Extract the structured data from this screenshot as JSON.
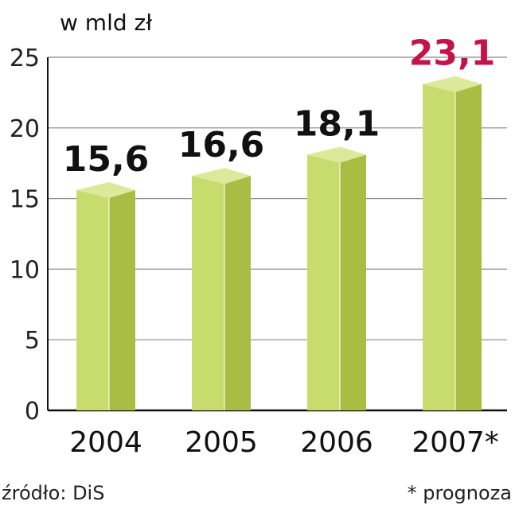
{
  "chart_data": {
    "type": "bar",
    "unit_label": "w mld zł",
    "categories": [
      "2004",
      "2005",
      "2006",
      "2007*"
    ],
    "values": [
      15.6,
      16.6,
      18.1,
      23.1
    ],
    "value_labels": [
      "15,6",
      "16,6",
      "18,1",
      "23,1"
    ],
    "highlight_index": 3,
    "ylim": [
      0,
      25
    ],
    "yticks": [
      0,
      5,
      10,
      15,
      20,
      25
    ],
    "grid": true,
    "colors": {
      "bar_front": "#c8dc6e",
      "bar_side": "#a9bd45",
      "bar_top": "#dde99a",
      "label_default": "#111111",
      "label_highlight": "#c4124a",
      "grid": "#888888"
    }
  },
  "footer": {
    "source": "źródło: DiS",
    "note": "* prognoza"
  }
}
